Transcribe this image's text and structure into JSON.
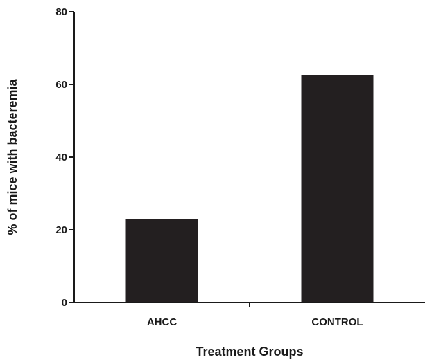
{
  "chart_data": {
    "type": "bar",
    "categories": [
      "AHCC",
      "CONTROL"
    ],
    "values": [
      23,
      62.5
    ],
    "xlabel": "Treatment Groups",
    "ylabel": "% of mice with bacteremia",
    "ylim": [
      0,
      80
    ],
    "yticks": [
      0,
      20,
      40,
      60,
      80
    ],
    "bar_color": "#231f20",
    "axis_color": "#1a1a1a",
    "grid": false
  }
}
